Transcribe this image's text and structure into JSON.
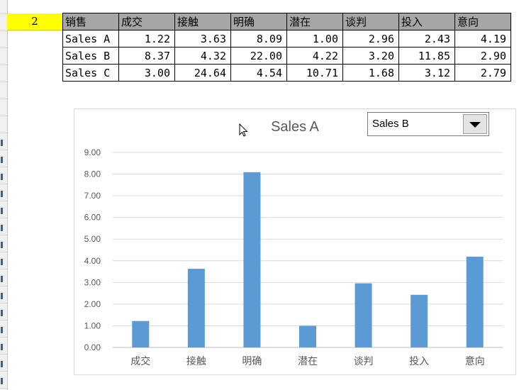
{
  "sheet": {
    "row_label": "2",
    "headers": [
      "销售",
      "成交",
      "接触",
      "明确",
      "潜在",
      "谈判",
      "投入",
      "意向"
    ],
    "rows": [
      {
        "name": "Sales A",
        "values": [
          "1.22",
          "3.63",
          "8.09",
          "1.00",
          "2.96",
          "2.43",
          "4.19"
        ]
      },
      {
        "name": "Sales B",
        "values": [
          "8.37",
          "4.32",
          "22.00",
          "4.22",
          "3.20",
          "11.85",
          "2.90"
        ]
      },
      {
        "name": "Sales C",
        "values": [
          "3.00",
          "24.64",
          "4.54",
          "10.71",
          "1.68",
          "3.12",
          "2.79"
        ]
      }
    ]
  },
  "dropdown": {
    "selected": "Sales B",
    "arrow_icon": "triangle-down-icon"
  },
  "chart_data": {
    "type": "bar",
    "title": "Sales A",
    "categories": [
      "成交",
      "接触",
      "明确",
      "潜在",
      "谈判",
      "投入",
      "意向"
    ],
    "values": [
      1.22,
      3.63,
      8.09,
      1.0,
      2.96,
      2.43,
      4.19
    ],
    "ylim": [
      0,
      9
    ],
    "yticks": [
      "0.00",
      "1.00",
      "2.00",
      "3.00",
      "4.00",
      "5.00",
      "6.00",
      "7.00",
      "8.00",
      "9.00"
    ],
    "xlabel": "",
    "ylabel": "",
    "grid": true,
    "bar_color": "#5b9bd5",
    "legend": "none"
  }
}
